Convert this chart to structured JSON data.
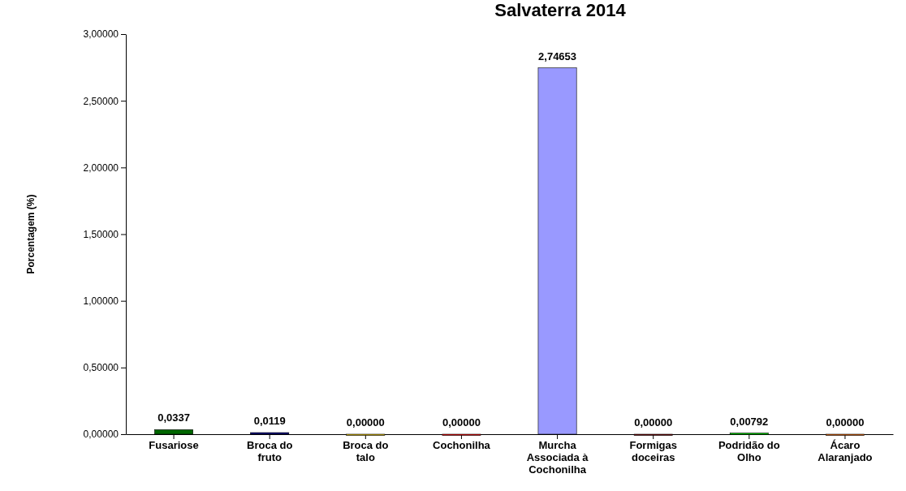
{
  "chart_data": {
    "type": "bar",
    "title": "Salvaterra  2014",
    "ylabel": "Porcentagem (%)",
    "categories": [
      "Fusariose",
      "Broca do fruto",
      "Broca do talo",
      "Cochonilha",
      "Murcha Associada à Cochonilha",
      "Formigas doceiras",
      "Podridão do Olho",
      "Ácaro Alaranjado"
    ],
    "values": [
      0.0337,
      0.0119,
      0,
      0,
      2.74653,
      0,
      0.00792,
      0
    ],
    "colors": [
      "#006600",
      "#000080",
      "#ccaa00",
      "#dd0000",
      "#9999ff",
      "#660000",
      "#00cc00",
      "#cc5500"
    ],
    "value_labels": [
      "0,0337",
      "0,0119",
      "0,00000",
      "0,00000",
      "2,74653",
      "0,00000",
      "0,00792",
      "0,00000"
    ],
    "ylim": [
      0,
      3
    ],
    "yticks": [
      {
        "value": 0,
        "label": "0,00000"
      },
      {
        "value": 0.5,
        "label": "0,50000"
      },
      {
        "value": 1,
        "label": "1,00000"
      },
      {
        "value": 1.5,
        "label": "1,50000"
      },
      {
        "value": 2,
        "label": "2,00000"
      },
      {
        "value": 2.5,
        "label": "2,50000"
      },
      {
        "value": 3,
        "label": "3,00000"
      }
    ],
    "grid": false
  }
}
